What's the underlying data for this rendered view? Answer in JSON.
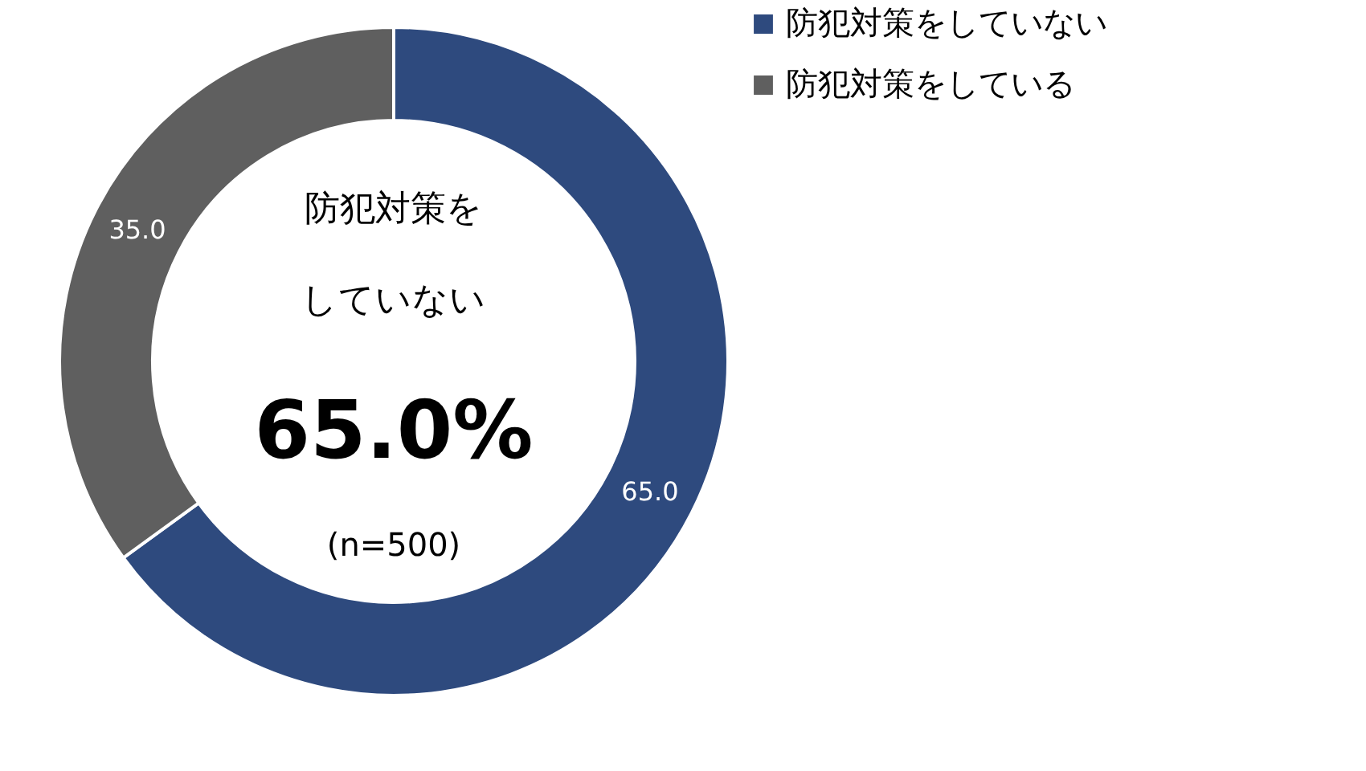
{
  "chart_data": {
    "type": "donut",
    "categories": [
      "防犯対策をしていない",
      "防犯対策をしている"
    ],
    "values": [
      65.0,
      35.0
    ],
    "colors": [
      "#2e4a7e",
      "#5f5f5f"
    ],
    "value_labels": [
      "65.0",
      "35.0"
    ],
    "annotations": [
      "防犯対策を",
      "していない",
      "65.0%",
      "(n=500)"
    ],
    "legend": "right"
  }
}
